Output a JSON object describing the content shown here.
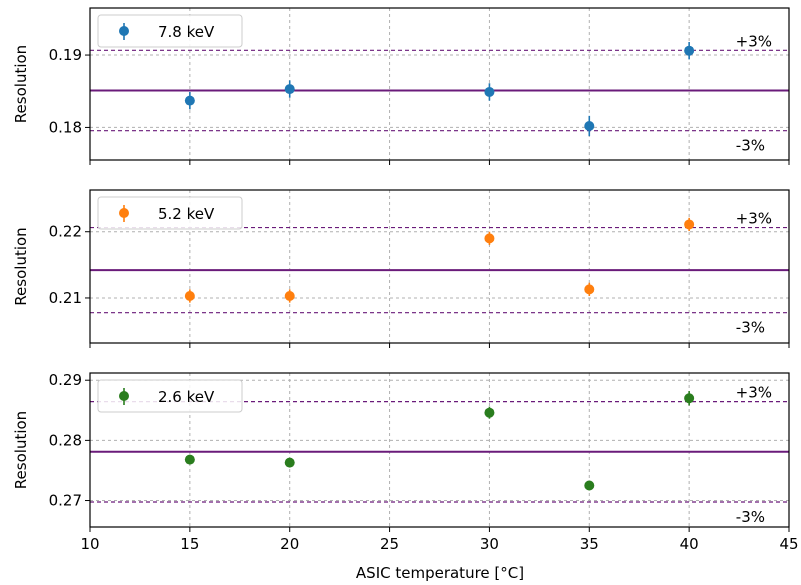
{
  "chart_data": {
    "type": "scatter",
    "xlabel": "ASIC temperature [°C]",
    "xlim": [
      10,
      45
    ],
    "xticks": [
      "10",
      "15",
      "20",
      "25",
      "30",
      "35",
      "40",
      "45"
    ],
    "grid": true,
    "legend_position": "top-left",
    "panels": [
      {
        "ylabel": "Resolution",
        "ylim": [
          0.1755,
          0.1965
        ],
        "yticks": [
          0.18,
          0.19
        ],
        "ytick_labels": [
          "0.18",
          "0.19"
        ],
        "mean": 0.1851,
        "plus_label": "+3%",
        "minus_label": "-3%",
        "series": {
          "name": "7.8 keV",
          "color": "#1f77b4",
          "x": [
            15,
            20,
            30,
            35,
            40
          ],
          "y": [
            0.1837,
            0.1853,
            0.1849,
            0.1802,
            0.1906
          ],
          "yerr": [
            0.0012,
            0.0012,
            0.0012,
            0.0014,
            0.0012
          ]
        }
      },
      {
        "ylabel": "Resolution",
        "ylim": [
          0.2032,
          0.2263
        ],
        "yticks": [
          0.21,
          0.22
        ],
        "ytick_labels": [
          "0.21",
          "0.22"
        ],
        "mean": 0.2142,
        "plus_label": "+3%",
        "minus_label": "-3%",
        "series": {
          "name": "5.2 keV",
          "color": "#ff7f0e",
          "x": [
            15,
            20,
            30,
            35,
            40
          ],
          "y": [
            0.2103,
            0.2103,
            0.219,
            0.2113,
            0.2211
          ],
          "yerr": [
            0.001,
            0.001,
            0.001,
            0.001,
            0.001
          ]
        }
      },
      {
        "ylabel": "Resolution",
        "ylim": [
          0.2656,
          0.2912
        ],
        "yticks": [
          0.27,
          0.28,
          0.29
        ],
        "ytick_labels": [
          "0.27",
          "0.28",
          "0.29"
        ],
        "mean": 0.2781,
        "plus_label": "+3%",
        "minus_label": "-3%",
        "series": {
          "name": "2.6 keV",
          "color": "#2a7d1e",
          "x": [
            15,
            20,
            30,
            35,
            40
          ],
          "y": [
            0.2768,
            0.2763,
            0.2846,
            0.2725,
            0.287
          ],
          "yerr": [
            0.0008,
            0.0008,
            0.001,
            0.0008,
            0.0012
          ]
        }
      }
    ]
  }
}
